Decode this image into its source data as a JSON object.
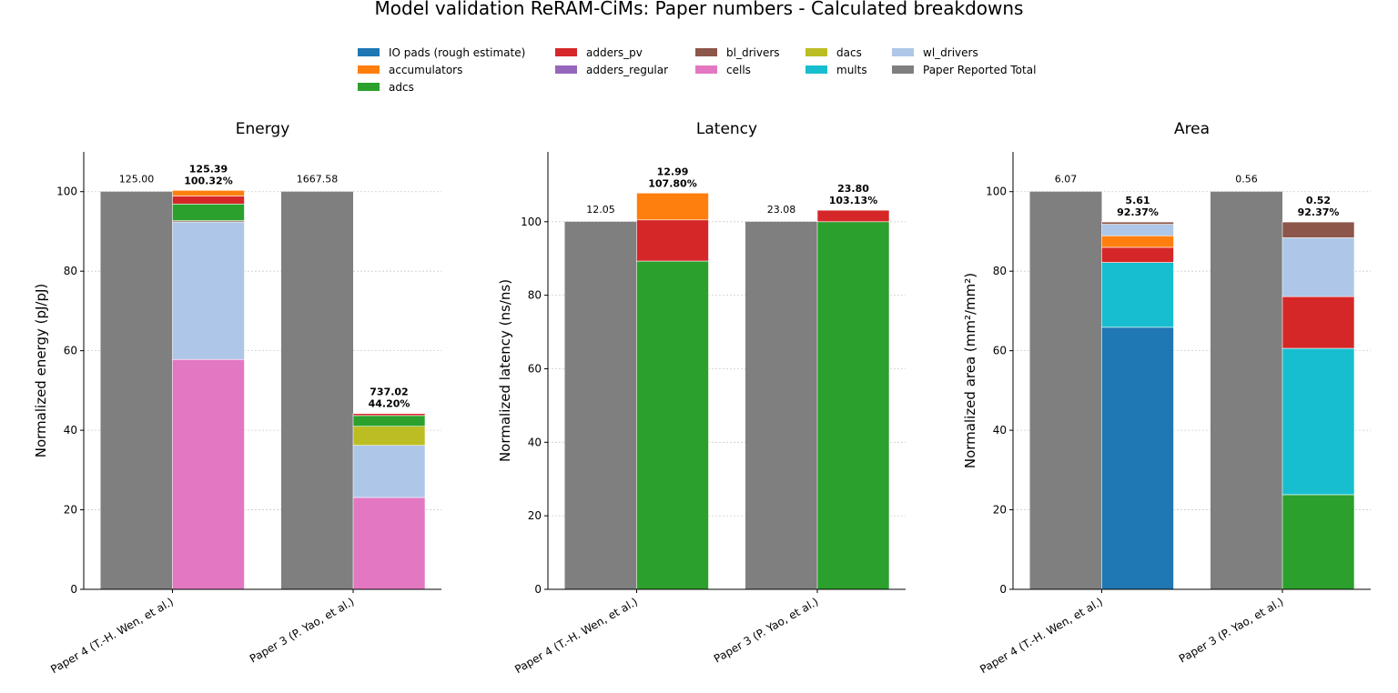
{
  "title": "Model validation ReRAM-CiMs: Paper numbers - Calculated breakdowns",
  "colors": {
    "IO pads (rough estimate)": "#1f77b4",
    "accumulators": "#ff7f0e",
    "adcs": "#2ca02c",
    "adders_pv": "#d62728",
    "adders_regular": "#9467bd",
    "bl_drivers": "#8c564b",
    "cells": "#e377c2",
    "dacs": "#bcbd22",
    "mults": "#17becf",
    "wl_drivers": "#aec7e8",
    "Paper Reported Total": "#7f7f7f"
  },
  "legend": [
    "IO pads (rough estimate)",
    "accumulators",
    "adcs",
    "adders_pv",
    "adders_regular",
    "bl_drivers",
    "cells",
    "dacs",
    "mults",
    "wl_drivers",
    "Paper Reported Total"
  ],
  "chart_data": [
    {
      "type": "bar",
      "title": "Energy",
      "ylabel": "Normalized energy (pJ/pJ)",
      "ylim": [
        0,
        110
      ],
      "yticks": [
        0,
        20,
        40,
        60,
        80,
        100
      ],
      "grid": true,
      "categories": [
        "Paper 4 (T.-H. Wen, et al.)",
        "Paper 3 (P. Yao, et al.)"
      ],
      "paper_values": [
        100,
        100
      ],
      "paper_labels": [
        "125.00",
        "1667.58"
      ],
      "calc_labels": [
        [
          "125.39",
          "100.32%"
        ],
        [
          "737.02",
          "44.20%"
        ]
      ],
      "stacks": [
        [
          {
            "name": "cells",
            "value": 57.8
          },
          {
            "name": "wl_drivers",
            "value": 34.6
          },
          {
            "name": "bl_drivers",
            "value": 0.3
          },
          {
            "name": "adcs",
            "value": 4.2
          },
          {
            "name": "adders_pv",
            "value": 2.0
          },
          {
            "name": "accumulators",
            "value": 1.42
          }
        ],
        [
          {
            "name": "cells",
            "value": 23.1
          },
          {
            "name": "wl_drivers",
            "value": 13.1
          },
          {
            "name": "dacs",
            "value": 4.8
          },
          {
            "name": "adcs",
            "value": 2.7
          },
          {
            "name": "adders_pv",
            "value": 0.5
          }
        ]
      ]
    },
    {
      "type": "bar",
      "title": "Latency",
      "ylabel": "Normalized latency (ns/ns)",
      "ylim": [
        0,
        119
      ],
      "yticks": [
        0,
        20,
        40,
        60,
        80,
        100
      ],
      "grid": true,
      "categories": [
        "Paper 4 (T.-H. Wen, et al.)",
        "Paper 3 (P. Yao, et al.)"
      ],
      "paper_values": [
        100,
        100
      ],
      "paper_labels": [
        "12.05",
        "23.08"
      ],
      "calc_labels": [
        [
          "12.99",
          "107.80%"
        ],
        [
          "23.80",
          "103.13%"
        ]
      ],
      "stacks": [
        [
          {
            "name": "adcs",
            "value": 89.3
          },
          {
            "name": "adders_pv",
            "value": 11.2
          },
          {
            "name": "accumulators",
            "value": 7.3
          }
        ],
        [
          {
            "name": "adcs",
            "value": 100.0
          },
          {
            "name": "adders_pv",
            "value": 3.13
          }
        ]
      ]
    },
    {
      "type": "bar",
      "title": "Area",
      "ylabel": "Normalized area (mm²/mm²)",
      "ylim": [
        0,
        110
      ],
      "yticks": [
        0,
        20,
        40,
        60,
        80,
        100
      ],
      "grid": true,
      "categories": [
        "Paper 4 (T.-H. Wen, et al.)",
        "Paper 3 (P. Yao, et al.)"
      ],
      "paper_values": [
        100,
        100
      ],
      "paper_labels": [
        "6.07",
        "0.56"
      ],
      "calc_labels": [
        [
          "5.61",
          "92.37%"
        ],
        [
          "0.52",
          "92.37%"
        ]
      ],
      "stacks": [
        [
          {
            "name": "IO pads (rough estimate)",
            "value": 65.9
          },
          {
            "name": "mults",
            "value": 16.3
          },
          {
            "name": "adders_pv",
            "value": 3.8
          },
          {
            "name": "accumulators",
            "value": 2.9
          },
          {
            "name": "wl_drivers",
            "value": 2.9
          },
          {
            "name": "bl_drivers",
            "value": 0.57
          }
        ],
        [
          {
            "name": "adcs",
            "value": 23.8
          },
          {
            "name": "mults",
            "value": 36.8
          },
          {
            "name": "adders_pv",
            "value": 13.0
          },
          {
            "name": "wl_drivers",
            "value": 14.8
          },
          {
            "name": "bl_drivers",
            "value": 3.97
          }
        ]
      ]
    }
  ]
}
